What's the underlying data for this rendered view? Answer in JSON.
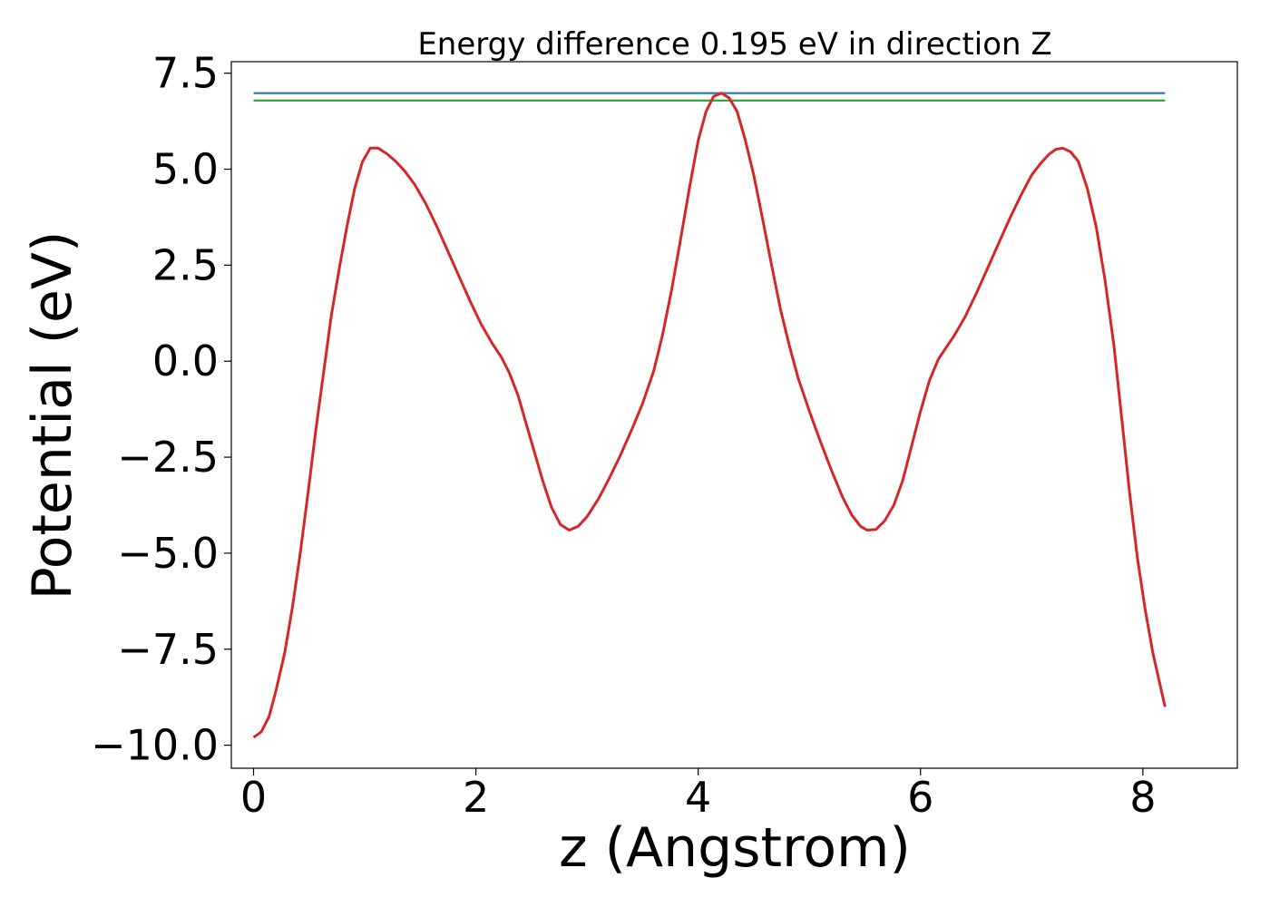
{
  "chart_data": {
    "type": "line",
    "title": "Energy difference 0.195 eV in direction Z",
    "xlabel": "z (Angstrom)",
    "ylabel": "Potential (eV)",
    "xlim": [
      -0.2,
      8.85
    ],
    "ylim": [
      -10.6,
      7.8
    ],
    "xticks": [
      0,
      2,
      4,
      6,
      8
    ],
    "xtick_labels": [
      "0",
      "2",
      "4",
      "6",
      "8"
    ],
    "yticks": [
      -10.0,
      -7.5,
      -5.0,
      -2.5,
      0.0,
      2.5,
      5.0,
      7.5
    ],
    "ytick_labels": [
      "−10.0",
      "−7.5",
      "−5.0",
      "−2.5",
      "0.0",
      "2.5",
      "5.0",
      "7.5"
    ],
    "grid": false,
    "series": [
      {
        "color": "#1f77b4",
        "x": [
          0.0,
          8.2
        ],
        "y": [
          6.98,
          6.98
        ]
      },
      {
        "color": "#2ca02c",
        "x": [
          0.0,
          8.2
        ],
        "y": [
          6.79,
          6.79
        ]
      },
      {
        "color": "#d62728",
        "x": [
          0.0,
          0.07,
          0.14,
          0.2,
          0.28,
          0.35,
          0.42,
          0.5,
          0.56,
          0.63,
          0.7,
          0.77,
          0.84,
          0.91,
          0.98,
          1.05,
          1.12,
          1.2,
          1.28,
          1.36,
          1.45,
          1.55,
          1.65,
          1.75,
          1.85,
          1.95,
          2.05,
          2.15,
          2.23,
          2.3,
          2.38,
          2.45,
          2.52,
          2.6,
          2.68,
          2.76,
          2.84,
          2.92,
          3.0,
          3.1,
          3.2,
          3.3,
          3.4,
          3.5,
          3.6,
          3.68,
          3.76,
          3.84,
          3.92,
          4.0,
          4.07,
          4.14,
          4.21,
          4.28,
          4.35,
          4.42,
          4.5,
          4.58,
          4.66,
          4.74,
          4.82,
          4.9,
          5.0,
          5.1,
          5.2,
          5.3,
          5.38,
          5.46,
          5.52,
          5.6,
          5.68,
          5.76,
          5.84,
          5.92,
          6.0,
          6.08,
          6.16,
          6.24,
          6.3,
          6.4,
          6.5,
          6.6,
          6.7,
          6.8,
          6.9,
          7.0,
          7.08,
          7.16,
          7.22,
          7.28,
          7.35,
          7.42,
          7.5,
          7.58,
          7.66,
          7.74,
          7.81,
          7.88,
          7.95,
          8.02,
          8.09,
          8.2
        ],
        "y": [
          -9.8,
          -9.65,
          -9.25,
          -8.6,
          -7.6,
          -6.4,
          -5.0,
          -3.2,
          -1.8,
          -0.3,
          1.2,
          2.4,
          3.5,
          4.5,
          5.2,
          5.55,
          5.55,
          5.4,
          5.2,
          4.95,
          4.6,
          4.1,
          3.5,
          2.85,
          2.2,
          1.55,
          0.95,
          0.45,
          0.1,
          -0.3,
          -0.9,
          -1.6,
          -2.3,
          -3.1,
          -3.8,
          -4.25,
          -4.4,
          -4.3,
          -4.05,
          -3.6,
          -3.05,
          -2.45,
          -1.8,
          -1.1,
          -0.25,
          0.7,
          1.85,
          3.15,
          4.5,
          5.75,
          6.5,
          6.9,
          6.98,
          6.85,
          6.5,
          5.8,
          4.85,
          3.7,
          2.5,
          1.35,
          0.4,
          -0.45,
          -1.3,
          -2.1,
          -2.85,
          -3.55,
          -4.0,
          -4.3,
          -4.4,
          -4.38,
          -4.15,
          -3.75,
          -3.1,
          -2.2,
          -1.3,
          -0.5,
          0.05,
          0.4,
          0.65,
          1.15,
          1.75,
          2.4,
          3.05,
          3.7,
          4.3,
          4.85,
          5.15,
          5.4,
          5.52,
          5.55,
          5.45,
          5.2,
          4.5,
          3.5,
          2.1,
          0.4,
          -1.5,
          -3.4,
          -5.1,
          -6.45,
          -7.6,
          -9.0
        ]
      }
    ]
  }
}
